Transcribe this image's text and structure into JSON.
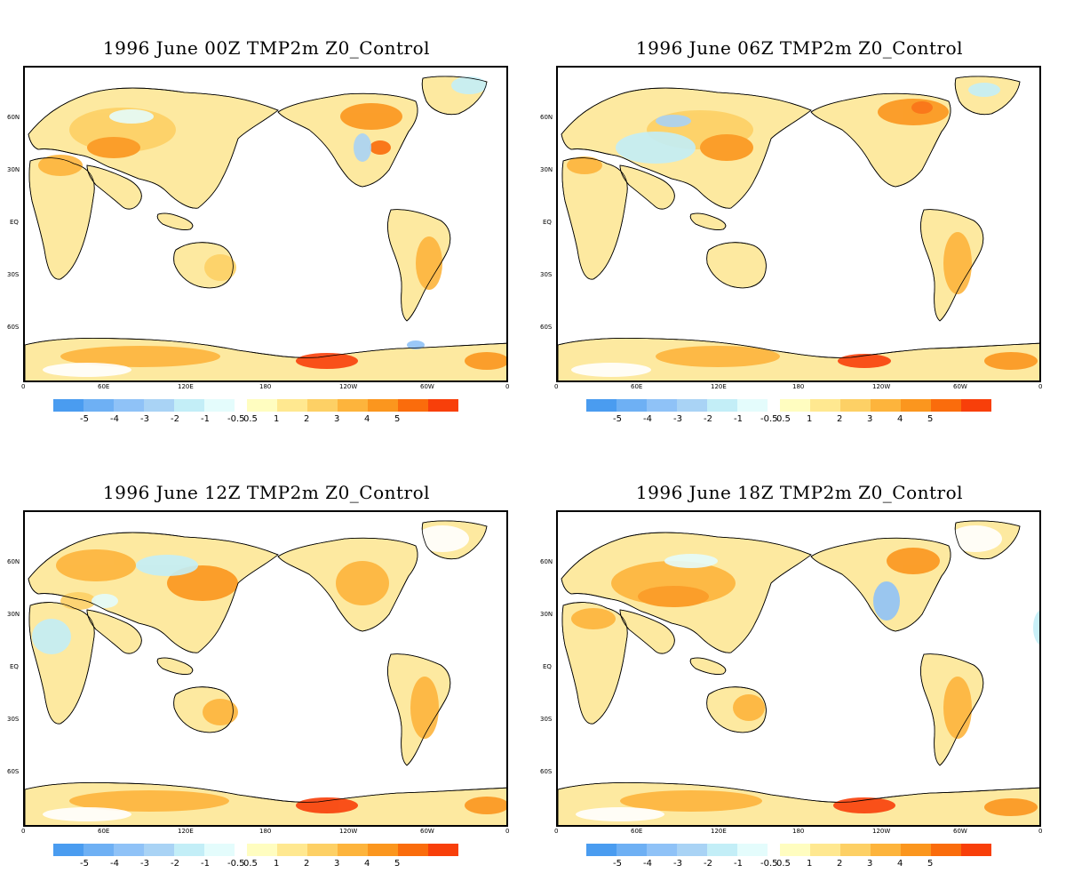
{
  "panels": [
    {
      "title": "1996 June  00Z TMP2m Z0_Control"
    },
    {
      "title": "1996  June 06Z TMP2m Z0_Control"
    },
    {
      "title": "1996  June 12Z TMP2m Z0_Control"
    },
    {
      "title": "1996  June 18Z TMP2m Z0_Control"
    }
  ],
  "axes": {
    "lat_labels": [
      "60N",
      "30N",
      "EQ",
      "30S",
      "60S"
    ],
    "lon_labels": [
      "0",
      "60E",
      "120E",
      "180",
      "120W",
      "60W",
      "0"
    ]
  },
  "legend": {
    "colors": [
      "#4a9cf0",
      "#6eb0f4",
      "#8fc2f7",
      "#a9d3f5",
      "#c3eef7",
      "#e4fcfc",
      "#fffdc0",
      "#ffe890",
      "#fdd065",
      "#fdb43c",
      "#fb961e",
      "#fa6c0c",
      "#f83f0a"
    ],
    "labels": [
      "-5",
      "-4",
      "-3",
      "-2",
      "-1",
      "-0.5",
      "0.5",
      "1",
      "2",
      "3",
      "4",
      "5"
    ]
  }
}
